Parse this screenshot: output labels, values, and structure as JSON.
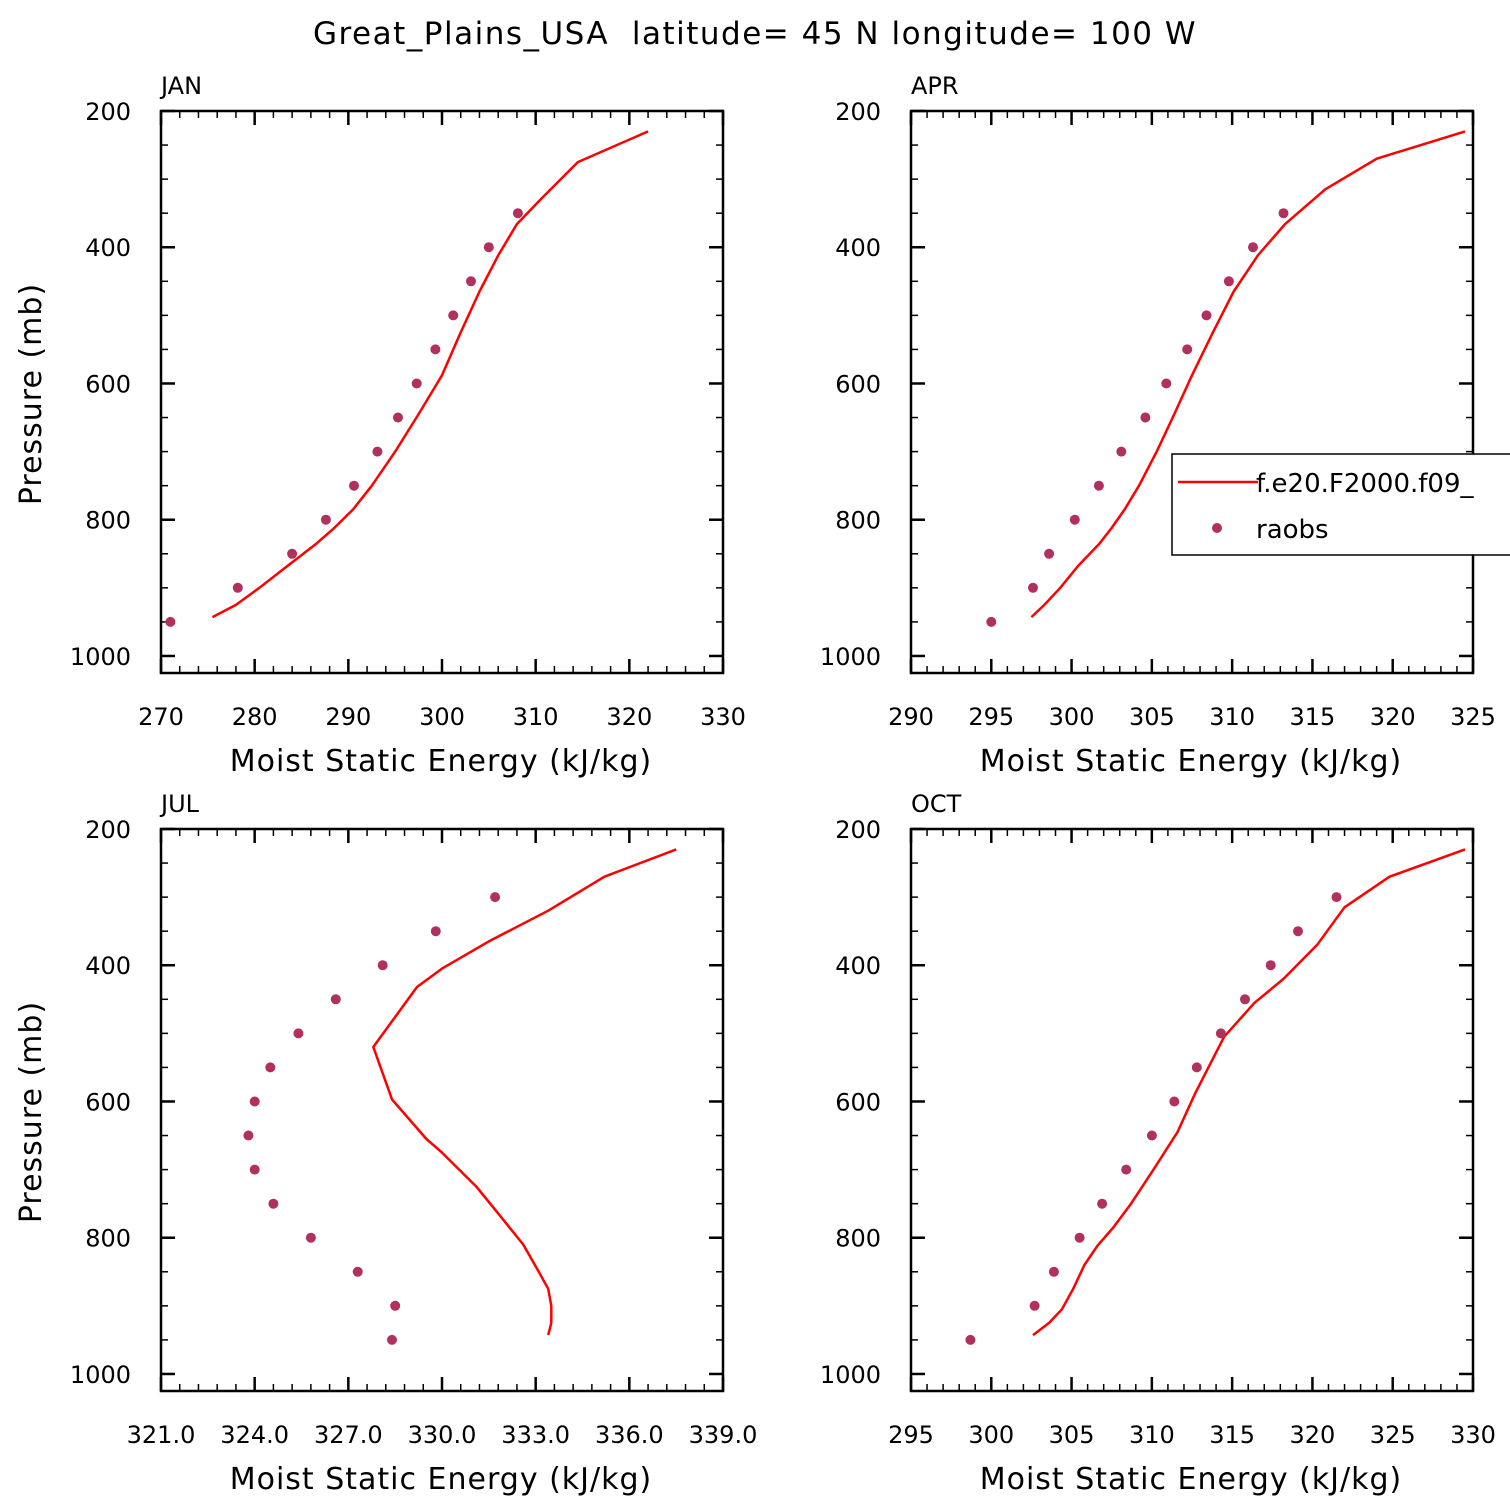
{
  "figure": {
    "title": "Great_Plains_USA  latitude= 45 N longitude= 100 W"
  },
  "colors": {
    "model_line": "#ff0000",
    "raobs_marker": "#b0305e",
    "axis": "#000000"
  },
  "legend": {
    "panel": "APR",
    "placement": "right",
    "entries": [
      {
        "label": "f.e20.F2000.f09_",
        "style": "line",
        "color": "#ff0000"
      },
      {
        "label": "raobs",
        "style": "marker",
        "color": "#b0305e"
      }
    ]
  },
  "chart_data": [
    {
      "type": "line",
      "panel_label": "JAN",
      "xlabel": "Moist Static Energy (kJ/kg)",
      "ylabel": "Pressure (mb)",
      "xlim": [
        270,
        330
      ],
      "ylim": [
        1000,
        200
      ],
      "x_ticks": [
        270,
        280,
        290,
        300,
        310,
        320,
        330
      ],
      "x_tick_labels": [
        "270",
        "280",
        "290",
        "300",
        "310",
        "320",
        "330"
      ],
      "x_minor_step": 2,
      "y_ticks": [
        200,
        400,
        600,
        800,
        1000
      ],
      "y_tick_labels": [
        "200",
        "400",
        "600",
        "800",
        "1000"
      ],
      "y_minor_step": 50,
      "series": [
        {
          "name": "f.e20.F2000.f09_",
          "kind": "line",
          "points": [
            [
              275.5,
              943
            ],
            [
              278.0,
              925
            ],
            [
              280.5,
              900
            ],
            [
              283.5,
              868
            ],
            [
              286.5,
              836
            ],
            [
              288.5,
              812
            ],
            [
              290.5,
              785
            ],
            [
              292.5,
              750
            ],
            [
              295.0,
              700
            ],
            [
              297.5,
              645
            ],
            [
              300.0,
              588
            ],
            [
              302.0,
              525
            ],
            [
              304.0,
              465
            ],
            [
              306.0,
              412
            ],
            [
              308.0,
              366
            ],
            [
              310.5,
              330
            ],
            [
              314.5,
              275
            ],
            [
              322.0,
              230
            ]
          ]
        },
        {
          "name": "raobs",
          "kind": "scatter",
          "points": [
            [
              271.0,
              950
            ],
            [
              278.2,
              900
            ],
            [
              284.0,
              850
            ],
            [
              287.6,
              800
            ],
            [
              290.6,
              750
            ],
            [
              293.1,
              700
            ],
            [
              295.3,
              650
            ],
            [
              297.3,
              600
            ],
            [
              299.3,
              550
            ],
            [
              301.2,
              500
            ],
            [
              303.1,
              450
            ],
            [
              305.0,
              400
            ],
            [
              308.1,
              350
            ]
          ]
        }
      ]
    },
    {
      "type": "line",
      "panel_label": "APR",
      "xlabel": "Moist Static Energy (kJ/kg)",
      "ylabel": "",
      "xlim": [
        290,
        325
      ],
      "ylim": [
        1000,
        200
      ],
      "x_ticks": [
        290,
        295,
        300,
        305,
        310,
        315,
        320,
        325
      ],
      "x_tick_labels": [
        "290",
        "295",
        "300",
        "305",
        "310",
        "315",
        "320",
        "325"
      ],
      "x_minor_step": 1,
      "y_ticks": [
        200,
        400,
        600,
        800,
        1000
      ],
      "y_tick_labels": [
        "200",
        "400",
        "600",
        "800",
        "1000"
      ],
      "y_minor_step": 50,
      "series": [
        {
          "name": "f.e20.F2000.f09_",
          "kind": "line",
          "points": [
            [
              297.5,
              943
            ],
            [
              298.3,
              925
            ],
            [
              299.3,
              900
            ],
            [
              300.4,
              868
            ],
            [
              301.7,
              836
            ],
            [
              302.5,
              812
            ],
            [
              303.3,
              785
            ],
            [
              304.2,
              750
            ],
            [
              305.3,
              700
            ],
            [
              306.4,
              645
            ],
            [
              307.5,
              588
            ],
            [
              308.8,
              525
            ],
            [
              310.1,
              465
            ],
            [
              311.6,
              412
            ],
            [
              313.3,
              366
            ],
            [
              315.8,
              315
            ],
            [
              319.0,
              270
            ],
            [
              324.5,
              230
            ]
          ]
        },
        {
          "name": "raobs",
          "kind": "scatter",
          "points": [
            [
              295.0,
              950
            ],
            [
              297.6,
              900
            ],
            [
              298.6,
              850
            ],
            [
              300.2,
              800
            ],
            [
              301.7,
              750
            ],
            [
              303.1,
              700
            ],
            [
              304.6,
              650
            ],
            [
              305.9,
              600
            ],
            [
              307.2,
              550
            ],
            [
              308.4,
              500
            ],
            [
              309.8,
              450
            ],
            [
              311.3,
              400
            ],
            [
              313.2,
              350
            ]
          ]
        }
      ]
    },
    {
      "type": "line",
      "panel_label": "JUL",
      "xlabel": "Moist Static Energy (kJ/kg)",
      "ylabel": "Pressure (mb)",
      "xlim": [
        321.0,
        339.0
      ],
      "ylim": [
        1000,
        200
      ],
      "x_ticks": [
        321.0,
        324.0,
        327.0,
        330.0,
        333.0,
        336.0,
        339.0
      ],
      "x_tick_labels": [
        "321.0",
        "324.0",
        "327.0",
        "330.0",
        "333.0",
        "336.0",
        "339.0"
      ],
      "x_minor_step": 0.6,
      "y_ticks": [
        200,
        400,
        600,
        800,
        1000
      ],
      "y_tick_labels": [
        "200",
        "400",
        "600",
        "800",
        "1000"
      ],
      "y_minor_step": 50,
      "series": [
        {
          "name": "f.e20.F2000.f09_",
          "kind": "line",
          "points": [
            [
              333.4,
              943
            ],
            [
              333.5,
              925
            ],
            [
              333.5,
              900
            ],
            [
              333.4,
              875
            ],
            [
              333.1,
              850
            ],
            [
              332.6,
              810
            ],
            [
              331.9,
              770
            ],
            [
              331.1,
              725
            ],
            [
              330.0,
              675
            ],
            [
              329.5,
              655
            ],
            [
              328.4,
              597
            ],
            [
              327.8,
              520
            ],
            [
              329.2,
              432
            ],
            [
              330.0,
              405
            ],
            [
              331.5,
              365
            ],
            [
              333.4,
              320
            ],
            [
              335.2,
              270
            ],
            [
              337.5,
              230
            ]
          ]
        },
        {
          "name": "raobs",
          "kind": "scatter",
          "points": [
            [
              328.4,
              950
            ],
            [
              328.5,
              900
            ],
            [
              327.3,
              850
            ],
            [
              325.8,
              800
            ],
            [
              324.6,
              750
            ],
            [
              324.0,
              700
            ],
            [
              323.8,
              650
            ],
            [
              324.0,
              600
            ],
            [
              324.5,
              550
            ],
            [
              325.4,
              500
            ],
            [
              326.6,
              450
            ],
            [
              328.1,
              400
            ],
            [
              329.8,
              350
            ],
            [
              331.7,
              300
            ]
          ]
        }
      ]
    },
    {
      "type": "line",
      "panel_label": "OCT",
      "xlabel": "Moist Static Energy (kJ/kg)",
      "ylabel": "",
      "xlim": [
        295,
        330
      ],
      "ylim": [
        1000,
        200
      ],
      "x_ticks": [
        295,
        300,
        305,
        310,
        315,
        320,
        325,
        330
      ],
      "x_tick_labels": [
        "295",
        "300",
        "305",
        "310",
        "315",
        "320",
        "325",
        "330"
      ],
      "x_minor_step": 1,
      "y_ticks": [
        200,
        400,
        600,
        800,
        1000
      ],
      "y_tick_labels": [
        "200",
        "400",
        "600",
        "800",
        "1000"
      ],
      "y_minor_step": 50,
      "series": [
        {
          "name": "f.e20.F2000.f09_",
          "kind": "line",
          "points": [
            [
              302.6,
              943
            ],
            [
              303.6,
              925
            ],
            [
              304.4,
              905
            ],
            [
              305.1,
              875
            ],
            [
              305.8,
              840
            ],
            [
              306.6,
              812
            ],
            [
              307.6,
              785
            ],
            [
              308.7,
              750
            ],
            [
              310.1,
              700
            ],
            [
              311.6,
              645
            ],
            [
              312.7,
              588
            ],
            [
              314.5,
              505
            ],
            [
              316.4,
              455
            ],
            [
              318.2,
              420
            ],
            [
              320.3,
              370
            ],
            [
              322.0,
              315
            ],
            [
              324.8,
              270
            ],
            [
              329.5,
              230
            ]
          ]
        },
        {
          "name": "raobs",
          "kind": "scatter",
          "points": [
            [
              298.7,
              950
            ],
            [
              302.7,
              900
            ],
            [
              303.9,
              850
            ],
            [
              305.5,
              800
            ],
            [
              306.9,
              750
            ],
            [
              308.4,
              700
            ],
            [
              310.0,
              650
            ],
            [
              311.4,
              600
            ],
            [
              312.8,
              550
            ],
            [
              314.3,
              500
            ],
            [
              315.8,
              450
            ],
            [
              317.4,
              400
            ],
            [
              319.1,
              350
            ],
            [
              321.5,
              300
            ]
          ]
        }
      ]
    }
  ]
}
